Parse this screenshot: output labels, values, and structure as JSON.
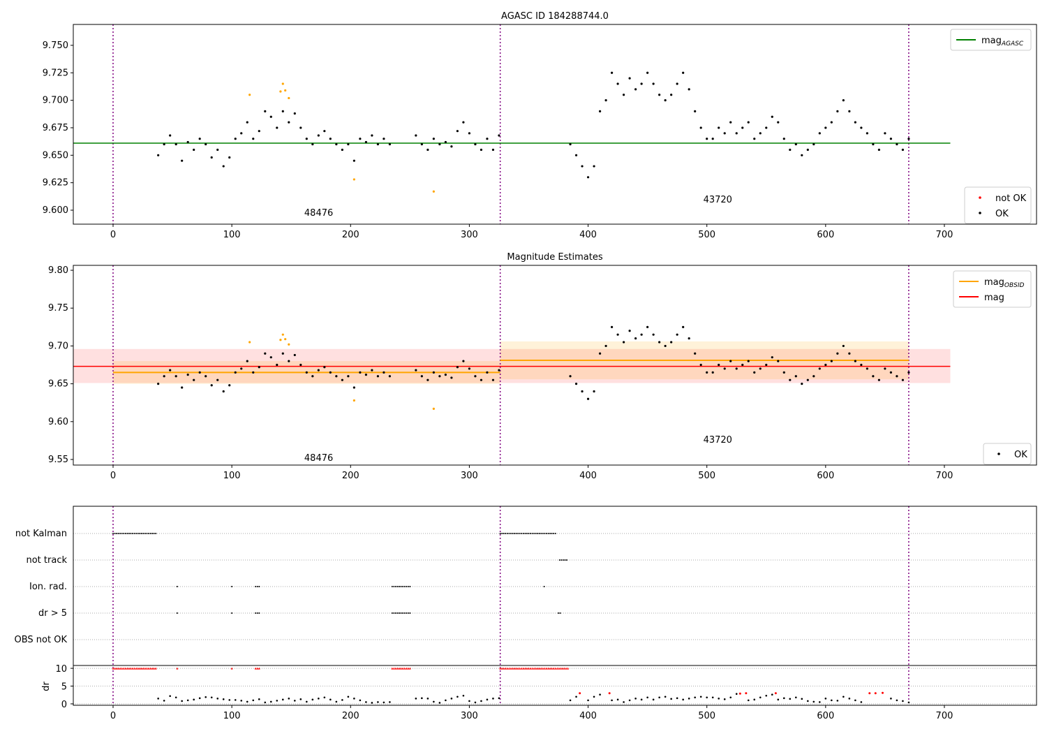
{
  "chart_data": [
    {
      "type": "scatter",
      "title": "AGASC ID 184288744.0",
      "xlim": [
        -33.5,
        777.6
      ],
      "ylim": [
        9.5873,
        9.769
      ],
      "xticks": [
        0,
        100,
        200,
        300,
        400,
        500,
        600,
        700
      ],
      "yticks": [
        "9.600",
        "9.625",
        "9.650",
        "9.675",
        "9.700",
        "9.725",
        "9.750"
      ],
      "legend_top": [
        {
          "label": "mag",
          "sub": "AGASC",
          "color": "#008000",
          "kind": "line"
        }
      ],
      "legend_bottom": [
        {
          "label": "not OK",
          "color": "#ff0000"
        },
        {
          "label": "OK",
          "color": "#000000"
        }
      ],
      "mag_agasc": 9.661,
      "obs_labels": [
        {
          "text": "48476",
          "x": 161,
          "y": 9.595
        },
        {
          "text": "43720",
          "x": 497,
          "y": 9.607
        }
      ]
    },
    {
      "type": "scatter",
      "title": "Magnitude Estimates",
      "xlim": [
        -33.5,
        777.6
      ],
      "ylim": [
        9.5426,
        9.8065
      ],
      "xticks": [
        0,
        100,
        200,
        300,
        400,
        500,
        600,
        700
      ],
      "yticks": [
        "9.55",
        "9.60",
        "9.65",
        "9.70",
        "9.75",
        "9.80"
      ],
      "legend_top": [
        {
          "label": "mag",
          "sub": "OBSID",
          "color": "#ffa500",
          "kind": "line"
        },
        {
          "label": "mag",
          "sub": "",
          "color": "#ff0000",
          "kind": "line"
        }
      ],
      "legend_bottom": [
        {
          "label": "OK",
          "color": "#000000"
        }
      ],
      "mag": {
        "value": 9.673,
        "low": 9.651,
        "high": 9.696,
        "x": [
          -33.5,
          705
        ]
      },
      "mag_obsid": [
        {
          "x": [
            0,
            326
          ],
          "value": 9.665,
          "low": 9.65,
          "high": 9.68
        },
        {
          "x": [
            326,
            670
          ],
          "value": 9.681,
          "low": 9.656,
          "high": 9.706
        }
      ],
      "obs_labels": [
        {
          "text": "48476",
          "x": 161,
          "y": 9.548
        },
        {
          "text": "43720",
          "x": 497,
          "y": 9.572
        }
      ]
    },
    {
      "type": "scatter",
      "flags": [
        "not Kalman",
        "not track",
        "Ion. rad.",
        "dr > 5",
        "OBS not OK"
      ],
      "flag_ranges": {
        "not Kalman": [
          [
            0,
            37
          ],
          [
            326,
            373
          ]
        ],
        "not track": [
          [
            376,
            383
          ]
        ],
        "Ion. rad.": [
          [
            54,
            54
          ],
          [
            100,
            100
          ],
          [
            120,
            124
          ],
          [
            235,
            250
          ],
          [
            363,
            363
          ]
        ],
        "dr > 5": [
          [
            54,
            54
          ],
          [
            100,
            100
          ],
          [
            120,
            124
          ],
          [
            235,
            250
          ],
          [
            375,
            377
          ]
        ],
        "OBS not OK": []
      },
      "ylabel": "dr",
      "dr_yticks": [
        "0",
        "5",
        "10"
      ],
      "dr_ylim": [
        -0.4,
        10.8
      ],
      "xticks": [
        0,
        100,
        200,
        300,
        400,
        500,
        600,
        700
      ],
      "dr_red_at_10": [
        [
          0,
          37
        ],
        [
          54,
          54
        ],
        [
          100,
          100
        ],
        [
          120,
          124
        ],
        [
          235,
          250
        ],
        [
          326,
          383
        ]
      ],
      "dr_red": [
        [
          393,
          3
        ],
        [
          418,
          3
        ],
        [
          528,
          2.9
        ],
        [
          533,
          3
        ],
        [
          558,
          3
        ],
        [
          637,
          3
        ],
        [
          642,
          3
        ],
        [
          648,
          3.1
        ]
      ],
      "dr": [
        [
          38,
          1.5
        ],
        [
          43,
          0.9
        ],
        [
          48,
          2.2
        ],
        [
          53,
          1.8
        ],
        [
          58,
          0.8
        ],
        [
          63,
          1.0
        ],
        [
          68,
          1.2
        ],
        [
          73,
          1.6
        ],
        [
          78,
          1.9
        ],
        [
          83,
          1.8
        ],
        [
          88,
          1.5
        ],
        [
          93,
          1.3
        ],
        [
          98,
          1.1
        ],
        [
          103,
          1.1
        ],
        [
          108,
          0.9
        ],
        [
          113,
          0.6
        ],
        [
          118,
          1.0
        ],
        [
          123,
          1.3
        ],
        [
          128,
          0.4
        ],
        [
          133,
          0.6
        ],
        [
          138,
          0.9
        ],
        [
          143,
          1.2
        ],
        [
          148,
          1.5
        ],
        [
          153,
          0.9
        ],
        [
          158,
          1.3
        ],
        [
          163,
          0.6
        ],
        [
          168,
          1.2
        ],
        [
          173,
          1.5
        ],
        [
          178,
          1.8
        ],
        [
          183,
          1.2
        ],
        [
          188,
          0.6
        ],
        [
          193,
          1.1
        ],
        [
          198,
          2.0
        ],
        [
          203,
          1.5
        ],
        [
          208,
          1.0
        ],
        [
          213,
          0.5
        ],
        [
          218,
          0.3
        ],
        [
          223,
          0.5
        ],
        [
          228,
          0.4
        ],
        [
          233,
          0.5
        ],
        [
          255,
          1.5
        ],
        [
          260,
          1.6
        ],
        [
          265,
          1.5
        ],
        [
          270,
          0.6
        ],
        [
          275,
          0.3
        ],
        [
          280,
          1.0
        ],
        [
          285,
          1.5
        ],
        [
          290,
          2.0
        ],
        [
          295,
          2.3
        ],
        [
          300,
          0.8
        ],
        [
          305,
          0.4
        ],
        [
          310,
          0.8
        ],
        [
          315,
          1.2
        ],
        [
          320,
          1.5
        ],
        [
          325,
          1.6
        ],
        [
          385,
          1.0
        ],
        [
          390,
          2.0
        ],
        [
          400,
          1.0
        ],
        [
          405,
          2.0
        ],
        [
          410,
          2.6
        ],
        [
          420,
          1.0
        ],
        [
          425,
          1.2
        ],
        [
          430,
          0.5
        ],
        [
          435,
          1.0
        ],
        [
          440,
          1.5
        ],
        [
          445,
          1.2
        ],
        [
          450,
          1.8
        ],
        [
          455,
          1.2
        ],
        [
          460,
          1.8
        ],
        [
          465,
          2.0
        ],
        [
          470,
          1.4
        ],
        [
          475,
          1.6
        ],
        [
          480,
          1.2
        ],
        [
          485,
          1.5
        ],
        [
          490,
          1.8
        ],
        [
          495,
          2.0
        ],
        [
          500,
          1.8
        ],
        [
          505,
          1.8
        ],
        [
          510,
          1.5
        ],
        [
          515,
          1.3
        ],
        [
          520,
          1.8
        ],
        [
          525,
          2.8
        ],
        [
          535,
          1.0
        ],
        [
          540,
          1.2
        ],
        [
          545,
          1.8
        ],
        [
          550,
          2.3
        ],
        [
          555,
          2.6
        ],
        [
          560,
          1.2
        ],
        [
          565,
          1.6
        ],
        [
          570,
          1.4
        ],
        [
          575,
          1.8
        ],
        [
          580,
          1.4
        ],
        [
          585,
          0.8
        ],
        [
          590,
          0.6
        ],
        [
          595,
          0.5
        ],
        [
          600,
          1.5
        ],
        [
          605,
          1.0
        ],
        [
          610,
          0.9
        ],
        [
          615,
          2.0
        ],
        [
          620,
          1.5
        ],
        [
          625,
          1.0
        ],
        [
          630,
          0.5
        ],
        [
          655,
          1.5
        ],
        [
          660,
          1.0
        ],
        [
          665,
          0.8
        ],
        [
          670,
          0.4
        ]
      ]
    }
  ],
  "obs_boundaries": [
    0,
    326,
    670
  ],
  "mag_points": [
    [
      38,
      9.65
    ],
    [
      43,
      9.66
    ],
    [
      48,
      9.668
    ],
    [
      53,
      9.66
    ],
    [
      58,
      9.645
    ],
    [
      63,
      9.662
    ],
    [
      68,
      9.655
    ],
    [
      73,
      9.665
    ],
    [
      78,
      9.66
    ],
    [
      83,
      9.648
    ],
    [
      88,
      9.655
    ],
    [
      93,
      9.64
    ],
    [
      98,
      9.648
    ],
    [
      103,
      9.665
    ],
    [
      108,
      9.67
    ],
    [
      113,
      9.68
    ],
    [
      118,
      9.665
    ],
    [
      123,
      9.672
    ],
    [
      128,
      9.69
    ],
    [
      133,
      9.685
    ],
    [
      138,
      9.675
    ],
    [
      143,
      9.69
    ],
    [
      148,
      9.68
    ],
    [
      153,
      9.688
    ],
    [
      158,
      9.675
    ],
    [
      163,
      9.665
    ],
    [
      168,
      9.66
    ],
    [
      173,
      9.668
    ],
    [
      178,
      9.672
    ],
    [
      183,
      9.665
    ],
    [
      188,
      9.66
    ],
    [
      193,
      9.655
    ],
    [
      198,
      9.66
    ],
    [
      203,
      9.645
    ],
    [
      208,
      9.665
    ],
    [
      213,
      9.662
    ],
    [
      218,
      9.668
    ],
    [
      223,
      9.66
    ],
    [
      228,
      9.665
    ],
    [
      233,
      9.66
    ],
    [
      255,
      9.668
    ],
    [
      260,
      9.66
    ],
    [
      265,
      9.655
    ],
    [
      270,
      9.665
    ],
    [
      275,
      9.66
    ],
    [
      280,
      9.662
    ],
    [
      285,
      9.658
    ],
    [
      290,
      9.672
    ],
    [
      295,
      9.68
    ],
    [
      300,
      9.67
    ],
    [
      305,
      9.66
    ],
    [
      310,
      9.655
    ],
    [
      315,
      9.665
    ],
    [
      320,
      9.655
    ],
    [
      325,
      9.668
    ],
    [
      385,
      9.66
    ],
    [
      390,
      9.65
    ],
    [
      395,
      9.64
    ],
    [
      400,
      9.63
    ],
    [
      405,
      9.64
    ],
    [
      410,
      9.69
    ],
    [
      415,
      9.7
    ],
    [
      420,
      9.725
    ],
    [
      425,
      9.715
    ],
    [
      430,
      9.705
    ],
    [
      435,
      9.72
    ],
    [
      440,
      9.71
    ],
    [
      445,
      9.715
    ],
    [
      450,
      9.725
    ],
    [
      455,
      9.715
    ],
    [
      460,
      9.705
    ],
    [
      465,
      9.7
    ],
    [
      470,
      9.705
    ],
    [
      475,
      9.715
    ],
    [
      480,
      9.725
    ],
    [
      485,
      9.71
    ],
    [
      490,
      9.69
    ],
    [
      495,
      9.675
    ],
    [
      500,
      9.665
    ],
    [
      505,
      9.665
    ],
    [
      510,
      9.675
    ],
    [
      515,
      9.67
    ],
    [
      520,
      9.68
    ],
    [
      525,
      9.67
    ],
    [
      530,
      9.675
    ],
    [
      535,
      9.68
    ],
    [
      540,
      9.665
    ],
    [
      545,
      9.67
    ],
    [
      550,
      9.675
    ],
    [
      555,
      9.685
    ],
    [
      560,
      9.68
    ],
    [
      565,
      9.665
    ],
    [
      570,
      9.655
    ],
    [
      575,
      9.66
    ],
    [
      580,
      9.65
    ],
    [
      585,
      9.655
    ],
    [
      590,
      9.66
    ],
    [
      595,
      9.67
    ],
    [
      600,
      9.675
    ],
    [
      605,
      9.68
    ],
    [
      610,
      9.69
    ],
    [
      615,
      9.7
    ],
    [
      620,
      9.69
    ],
    [
      625,
      9.68
    ],
    [
      630,
      9.675
    ],
    [
      635,
      9.67
    ],
    [
      640,
      9.66
    ],
    [
      645,
      9.655
    ],
    [
      650,
      9.67
    ],
    [
      655,
      9.665
    ],
    [
      660,
      9.66
    ],
    [
      665,
      9.655
    ],
    [
      670,
      9.665
    ]
  ],
  "mag_points_orange": [
    [
      115,
      9.705
    ],
    [
      141,
      9.708
    ],
    [
      143,
      9.715
    ],
    [
      145,
      9.709
    ],
    [
      148,
      9.702
    ],
    [
      203,
      9.628
    ],
    [
      270,
      9.617
    ]
  ]
}
